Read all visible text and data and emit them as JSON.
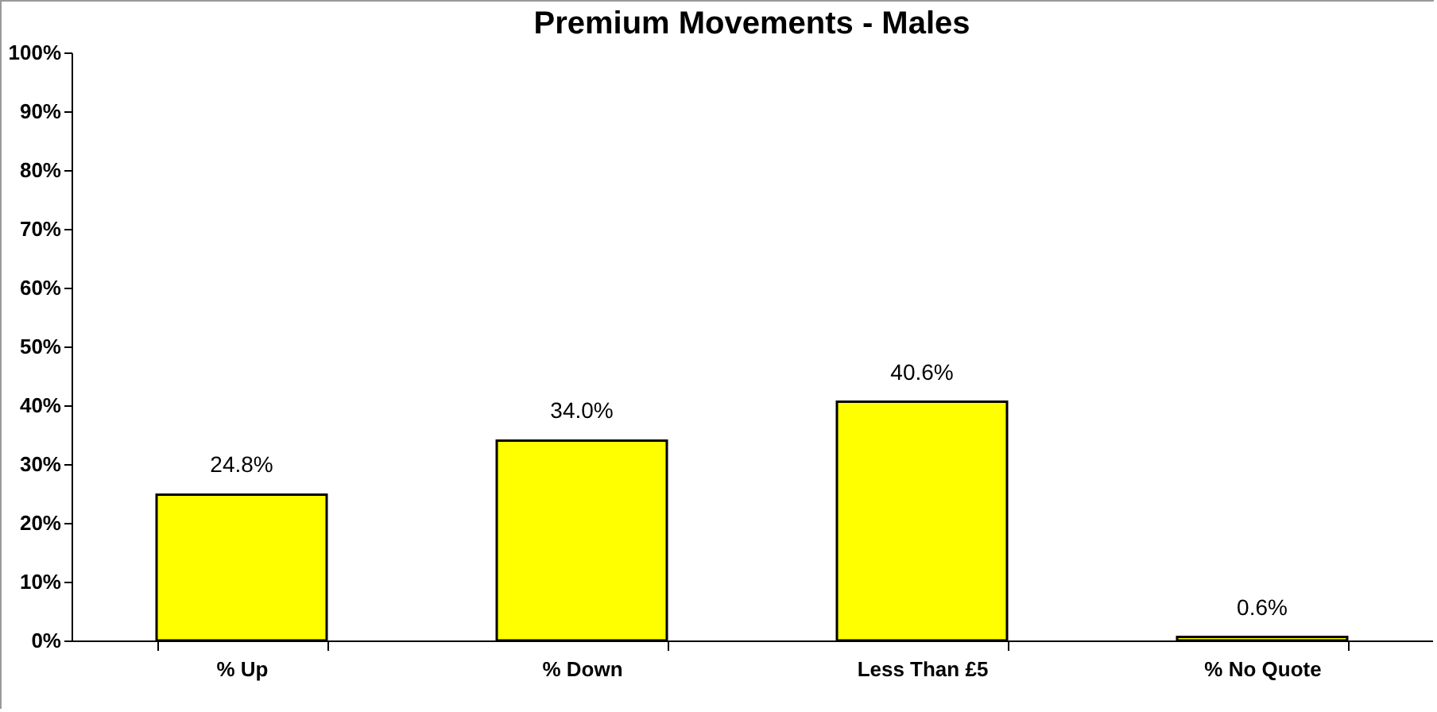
{
  "chart_data": {
    "type": "bar",
    "title": "Premium Movements - Males",
    "categories": [
      "% Up",
      "% Down",
      "Less Than £5",
      "% No Quote"
    ],
    "values": [
      24.8,
      34.0,
      40.6,
      0.6
    ],
    "value_labels": [
      "24.8%",
      "34.0%",
      "40.6%",
      "0.6%"
    ],
    "color": "#ffff00",
    "ylim": [
      0,
      100
    ],
    "yticks": [
      {
        "value": 0,
        "label": "0%"
      },
      {
        "value": 10,
        "label": "10%"
      },
      {
        "value": 20,
        "label": "20%"
      },
      {
        "value": 30,
        "label": "30%"
      },
      {
        "value": 40,
        "label": "40%"
      },
      {
        "value": 50,
        "label": "50%"
      },
      {
        "value": 60,
        "label": "60%"
      },
      {
        "value": 70,
        "label": "70%"
      },
      {
        "value": 80,
        "label": "80%"
      },
      {
        "value": 90,
        "label": "90%"
      },
      {
        "value": 100,
        "label": "100%"
      }
    ],
    "grid": false
  }
}
